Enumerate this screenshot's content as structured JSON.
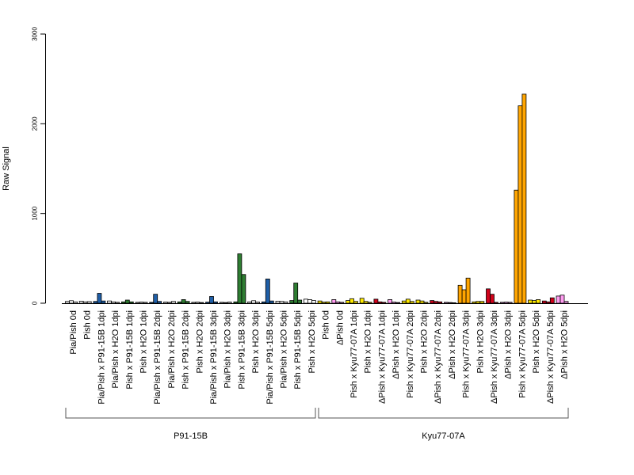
{
  "chart_data": {
    "type": "bar",
    "title": "",
    "xlabel": "",
    "ylabel": "Raw Signal",
    "ylim": [
      0,
      3000
    ],
    "yticks": [
      0,
      1000,
      2000,
      3000
    ],
    "grid": false,
    "legend": "none",
    "categories": [
      "Pia/Pish 0d",
      "Pish 0d",
      "Pia/Pish x P91-15B 1dpi",
      "Pia/Pish x H2O 1dpi",
      "Pish x P91-15B 1dpi",
      "Pish x H2O 1dpi",
      "Pia/Pish x P91-15B 2dpi",
      "Pia/Pish x H2O 2dpi",
      "Pish x P91-15B 2dpi",
      "Pish x H2O 2dpi",
      "Pia/Pish x P91-15B 3dpi",
      "Pia/Pish x H2O 3dpi",
      "Pish x P91-15B 3dpi",
      "Pish x H2O 3dpi",
      "Pia/Pish x P91-15B 5dpi",
      "Pia/Pish x H2O 5dpi",
      "Pish x P91-15B 5dpi",
      "Pish x H2O 5dpi",
      "Pish 0d",
      "ΔPish 0d",
      "Pish x Kyu77-07A 1dpi",
      "Pish x H2O 1dpi",
      "ΔPish x Kyu77-07A 1dpi",
      "ΔPish x H2O 1dpi",
      "Pish x Kyu77-07A 2dpi",
      "Pish x H2O 2dpi",
      "ΔPish x Kyu77-07A 2dpi",
      "ΔPish x H2O 2dpi",
      "Pish x Kyu77-07A 3dpi",
      "Pish x H2O 3dpi",
      "ΔPish x Kyu77-07A 3dpi",
      "ΔPish x H2O 3dpi",
      "Pish x Kyu77-07A 5dpi",
      "Pish x H2O 5dpi",
      "ΔPish x Kyu77-07A 5dpi",
      "ΔPish x H2O 5dpi"
    ],
    "groups": [
      {
        "label": "P91-15B",
        "from": 0,
        "to": 17
      },
      {
        "label": "Kyu77-07A",
        "from": 18,
        "to": 35
      }
    ],
    "colors": {
      "white": "#ffffff",
      "blue": "#1f5fa8",
      "green": "#2e7d32",
      "yellow": "#ffea00",
      "red": "#d0021b",
      "orange": "#ffa500",
      "pink": "#ff9cf0"
    },
    "bar_colors": [
      "white",
      "white",
      "blue",
      "white",
      "green",
      "white",
      "blue",
      "white",
      "green",
      "white",
      "blue",
      "white",
      "green",
      "white",
      "blue",
      "white",
      "green",
      "white",
      "yellow",
      "pink",
      "yellow",
      "yellow",
      "red",
      "pink",
      "yellow",
      "yellow",
      "red",
      "pink",
      "orange",
      "yellow",
      "red",
      "pink",
      "orange",
      "yellow",
      "red",
      "pink"
    ],
    "values": [
      [
        20,
        28,
        15
      ],
      [
        22,
        15,
        18
      ],
      [
        20,
        110,
        25
      ],
      [
        25,
        15,
        10
      ],
      [
        15,
        35,
        15
      ],
      [
        10,
        12,
        10
      ],
      [
        10,
        100,
        20
      ],
      [
        12,
        10,
        20
      ],
      [
        15,
        40,
        20
      ],
      [
        10,
        12,
        8
      ],
      [
        12,
        75,
        15
      ],
      [
        10,
        8,
        12
      ],
      [
        15,
        550,
        320
      ],
      [
        15,
        28,
        12
      ],
      [
        15,
        270,
        25
      ],
      [
        22,
        20,
        15
      ],
      [
        30,
        225,
        35
      ],
      [
        45,
        40,
        30
      ],
      [
        25,
        12,
        15
      ],
      [
        40,
        15,
        10
      ],
      [
        30,
        50,
        20
      ],
      [
        55,
        20,
        10
      ],
      [
        45,
        15,
        10
      ],
      [
        40,
        12,
        8
      ],
      [
        25,
        45,
        20
      ],
      [
        35,
        25,
        10
      ],
      [
        30,
        20,
        15
      ],
      [
        10,
        8,
        5
      ],
      [
        200,
        150,
        280
      ],
      [
        15,
        20,
        20
      ],
      [
        160,
        100,
        10
      ],
      [
        10,
        12,
        10
      ],
      [
        1260,
        2200,
        2330
      ],
      [
        35,
        30,
        40
      ],
      [
        25,
        15,
        60
      ],
      [
        80,
        90,
        20
      ]
    ]
  }
}
